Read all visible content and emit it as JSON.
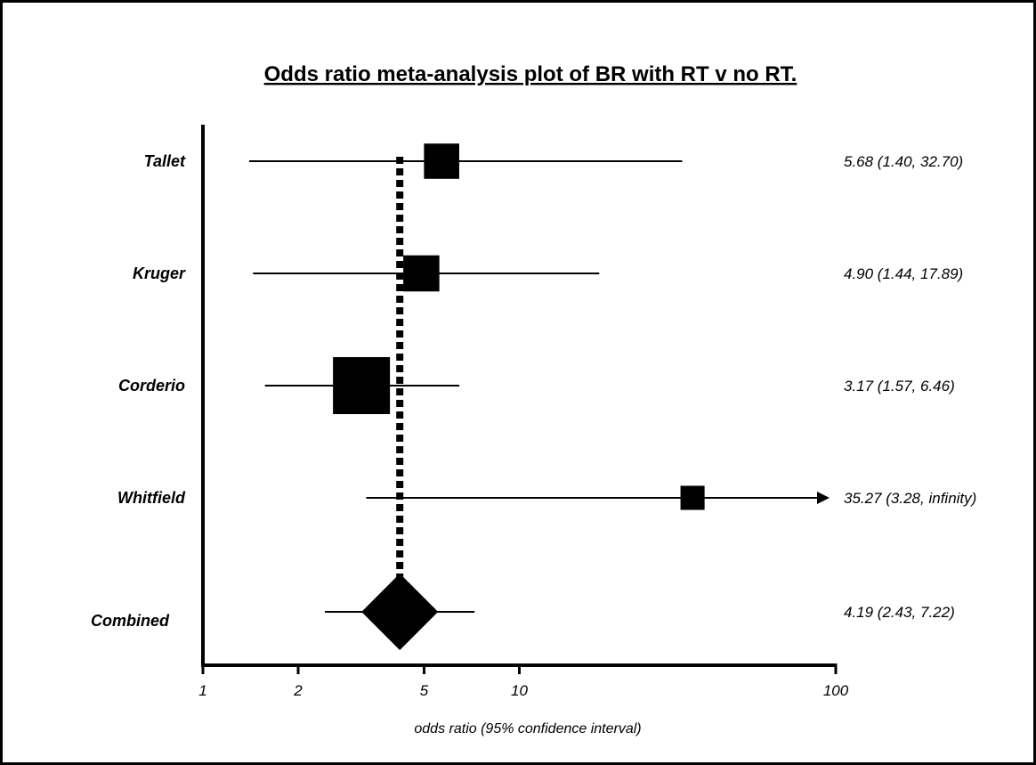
{
  "chart_data": {
    "type": "forest",
    "title": "Odds ratio meta-analysis plot of BR with RT v no RT.",
    "xlabel": "odds ratio (95% confidence interval)",
    "x_scale": "log",
    "xlim": [
      1,
      100
    ],
    "x_ticks": [
      {
        "value": 1,
        "label": "1"
      },
      {
        "value": 2,
        "label": "2"
      },
      {
        "value": 5,
        "label": "5"
      },
      {
        "value": 10,
        "label": "10"
      },
      {
        "value": 100,
        "label": "100"
      }
    ],
    "reference_line": {
      "value": 4.19,
      "style": "dotted"
    },
    "studies": [
      {
        "name": "Tallet",
        "or": 5.68,
        "lower": 1.4,
        "upper": 32.7,
        "weight": 0.3,
        "ci_text": "5.68 (1.40, 32.70)"
      },
      {
        "name": "Kruger",
        "or": 4.9,
        "lower": 1.44,
        "upper": 17.89,
        "weight": 0.32,
        "ci_text": "4.90 (1.44, 17.89)"
      },
      {
        "name": "Corderio",
        "or": 3.17,
        "lower": 1.57,
        "upper": 6.46,
        "weight": 1.0,
        "ci_text": "3.17 (1.57, 6.46)"
      },
      {
        "name": "Whitfield",
        "or": 35.27,
        "lower": 3.28,
        "upper": null,
        "weight": 0.1,
        "ci_text": "35.27 (3.28, infinity)"
      }
    ],
    "combined": {
      "name": "Combined",
      "or": 4.19,
      "lower": 2.43,
      "upper": 7.22,
      "ci_text": "4.19 (2.43, 7.22)"
    },
    "colors": {
      "marks": "#000000",
      "background": "#ffffff"
    }
  }
}
